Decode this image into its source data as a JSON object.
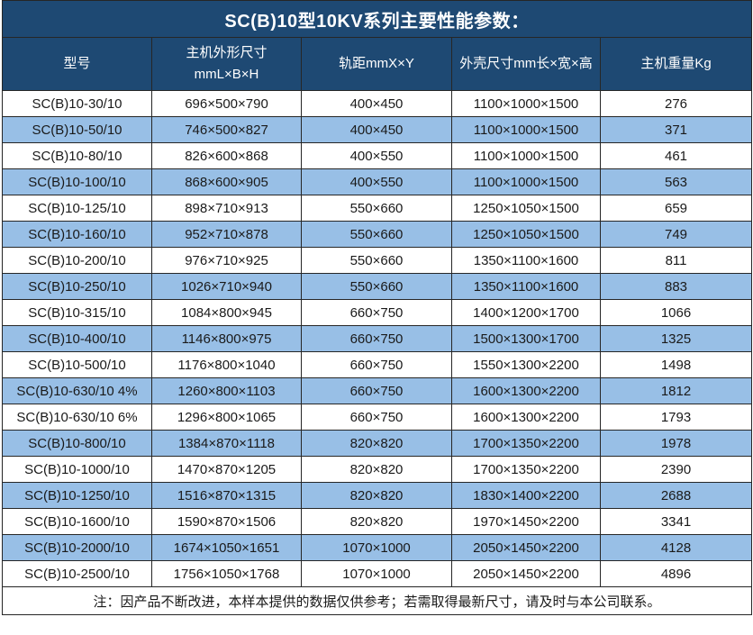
{
  "title": "SC(B)10型10KV系列主要性能参数：",
  "columns": [
    {
      "name": "model",
      "label": "型号"
    },
    {
      "name": "host-dimensions",
      "label": "主机外形尺寸\nmmL×B×H"
    },
    {
      "name": "track-gauge",
      "label": "轨距mmX×Y"
    },
    {
      "name": "shell-dimensions",
      "label": "外壳尺寸mm长×宽×高"
    },
    {
      "name": "host-weight",
      "label": "主机重量Kg"
    }
  ],
  "rows": [
    [
      "SC(B)10-30/10",
      "696×500×790",
      "400×450",
      "1100×1000×1500",
      "276"
    ],
    [
      "SC(B)10-50/10",
      "746×500×827",
      "400×450",
      "1100×1000×1500",
      "371"
    ],
    [
      "SC(B)10-80/10",
      "826×600×868",
      "400×550",
      "1100×1000×1500",
      "461"
    ],
    [
      "SC(B)10-100/10",
      "868×600×905",
      "400×550",
      "1100×1000×1500",
      "563"
    ],
    [
      "SC(B)10-125/10",
      "898×710×913",
      "550×660",
      "1250×1050×1500",
      "659"
    ],
    [
      "SC(B)10-160/10",
      "952×710×878",
      "550×660",
      "1250×1050×1500",
      "749"
    ],
    [
      "SC(B)10-200/10",
      "976×710×925",
      "550×660",
      "1350×1100×1600",
      "811"
    ],
    [
      "SC(B)10-250/10",
      "1026×710×940",
      "550×660",
      "1350×1100×1600",
      "883"
    ],
    [
      "SC(B)10-315/10",
      "1084×800×945",
      "660×750",
      "1400×1200×1700",
      "1066"
    ],
    [
      "SC(B)10-400/10",
      "1146×800×975",
      "660×750",
      "1500×1300×1700",
      "1325"
    ],
    [
      "SC(B)10-500/10",
      "1176×800×1040",
      "660×750",
      "1550×1300×2200",
      "1498"
    ],
    [
      "SC(B)10-630/10 4%",
      "1260×800×1103",
      "660×750",
      "1600×1300×2200",
      "1812"
    ],
    [
      "SC(B)10-630/10 6%",
      "1296×800×1065",
      "660×750",
      "1600×1300×2200",
      "1793"
    ],
    [
      "SC(B)10-800/10",
      "1384×870×1118",
      "820×820",
      "1700×1350×2200",
      "1978"
    ],
    [
      "SC(B)10-1000/10",
      "1470×870×1205",
      "820×820",
      "1700×1350×2200",
      "2390"
    ],
    [
      "SC(B)10-1250/10",
      "1516×870×1315",
      "820×820",
      "1830×1400×2200",
      "2688"
    ],
    [
      "SC(B)10-1600/10",
      "1590×870×1506",
      "820×820",
      "1970×1450×2200",
      "3341"
    ],
    [
      "SC(B)10-2000/10",
      "1674×1050×1651",
      "1070×1000",
      "2050×1450×2200",
      "4128"
    ],
    [
      "SC(B)10-2500/10",
      "1756×1050×1768",
      "1070×1000",
      "2050×1450×2200",
      "4896"
    ]
  ],
  "note": "注：因产品不断改进，本样本提供的数据仅供参考；若需取得最新尺寸，请及时与本公司联系。",
  "colors": {
    "header_bg": "#1E4973",
    "alt_row_bg": "#98BFE6",
    "row_bg": "#ffffff",
    "border": "#262626",
    "header_text": "#ffffff",
    "body_text": "#1a1a1a"
  }
}
